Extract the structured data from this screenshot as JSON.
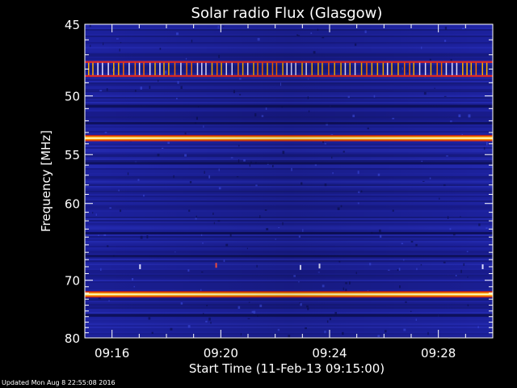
{
  "chart_data": {
    "type": "heatmap",
    "title": "Solar radio Flux (Glasgow)",
    "xlabel": "Start Time (11-Feb-13 09:15:00)",
    "ylabel": "Frequency [MHz]",
    "x_tick_labels": [
      "09:16",
      "09:20",
      "09:24",
      "09:28"
    ],
    "x_tick_minutes": [
      1,
      5,
      9,
      13
    ],
    "x_range_minutes": [
      0,
      15
    ],
    "y_tick_labels": [
      "45",
      "50",
      "55",
      "60",
      "70",
      "80"
    ],
    "y_tick_values": [
      45,
      50,
      55,
      60,
      70,
      80
    ],
    "y_range": [
      45,
      80
    ],
    "y_scale": "reciprocal",
    "colormap": [
      "#000040",
      "#1a1aa0",
      "#2e3ad0",
      "#c02020",
      "#ff9a00",
      "#fff0a0"
    ],
    "background_color": "#1c1f9a",
    "bright_bands_mhz": [
      {
        "freq": 47.5,
        "intensity": "high"
      },
      {
        "freq": 48.5,
        "intensity": "high"
      },
      {
        "freq": 53.5,
        "intensity": "very high"
      },
      {
        "freq": 72.2,
        "intensity": "very high"
      }
    ],
    "dark_bands_mhz": [
      50.8,
      52.2,
      55.8,
      63.5,
      66.5,
      75.8
    ],
    "grid": false,
    "legend": "none"
  },
  "footer": {
    "updated": "Updated Mon Aug  8 22:55:08 2016"
  }
}
